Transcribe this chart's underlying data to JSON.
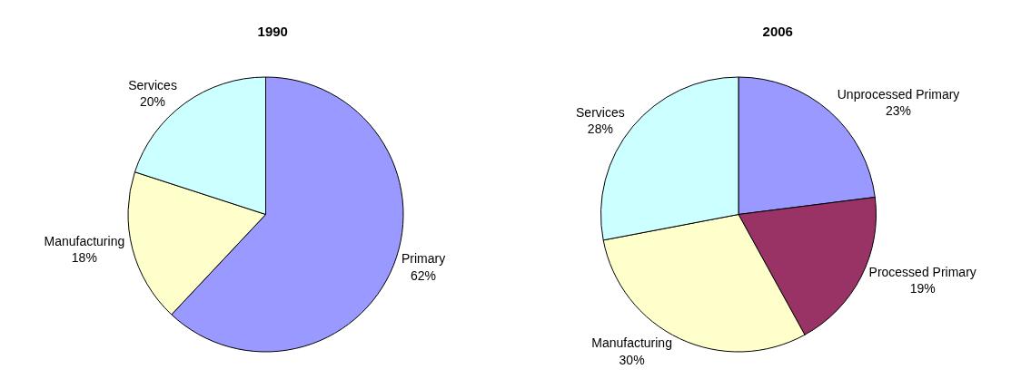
{
  "chart_data": [
    {
      "type": "pie",
      "title": "1990",
      "categories": [
        "Primary",
        "Manufacturing",
        "Services"
      ],
      "values": [
        62,
        18,
        20
      ],
      "value_labels": [
        "62%",
        "18%",
        "20%"
      ],
      "colors": [
        "#9999ff",
        "#ffffcc",
        "#ccffff"
      ],
      "legend": false
    },
    {
      "type": "pie",
      "title": "2006",
      "categories": [
        "Unprocessed Primary",
        "Processed Primary",
        "Manufacturing",
        "Services"
      ],
      "values": [
        23,
        19,
        30,
        28
      ],
      "value_labels": [
        "23%",
        "19%",
        "30%",
        "28%"
      ],
      "colors": [
        "#9999ff",
        "#993366",
        "#ffffcc",
        "#ccffff"
      ],
      "legend": false
    }
  ]
}
